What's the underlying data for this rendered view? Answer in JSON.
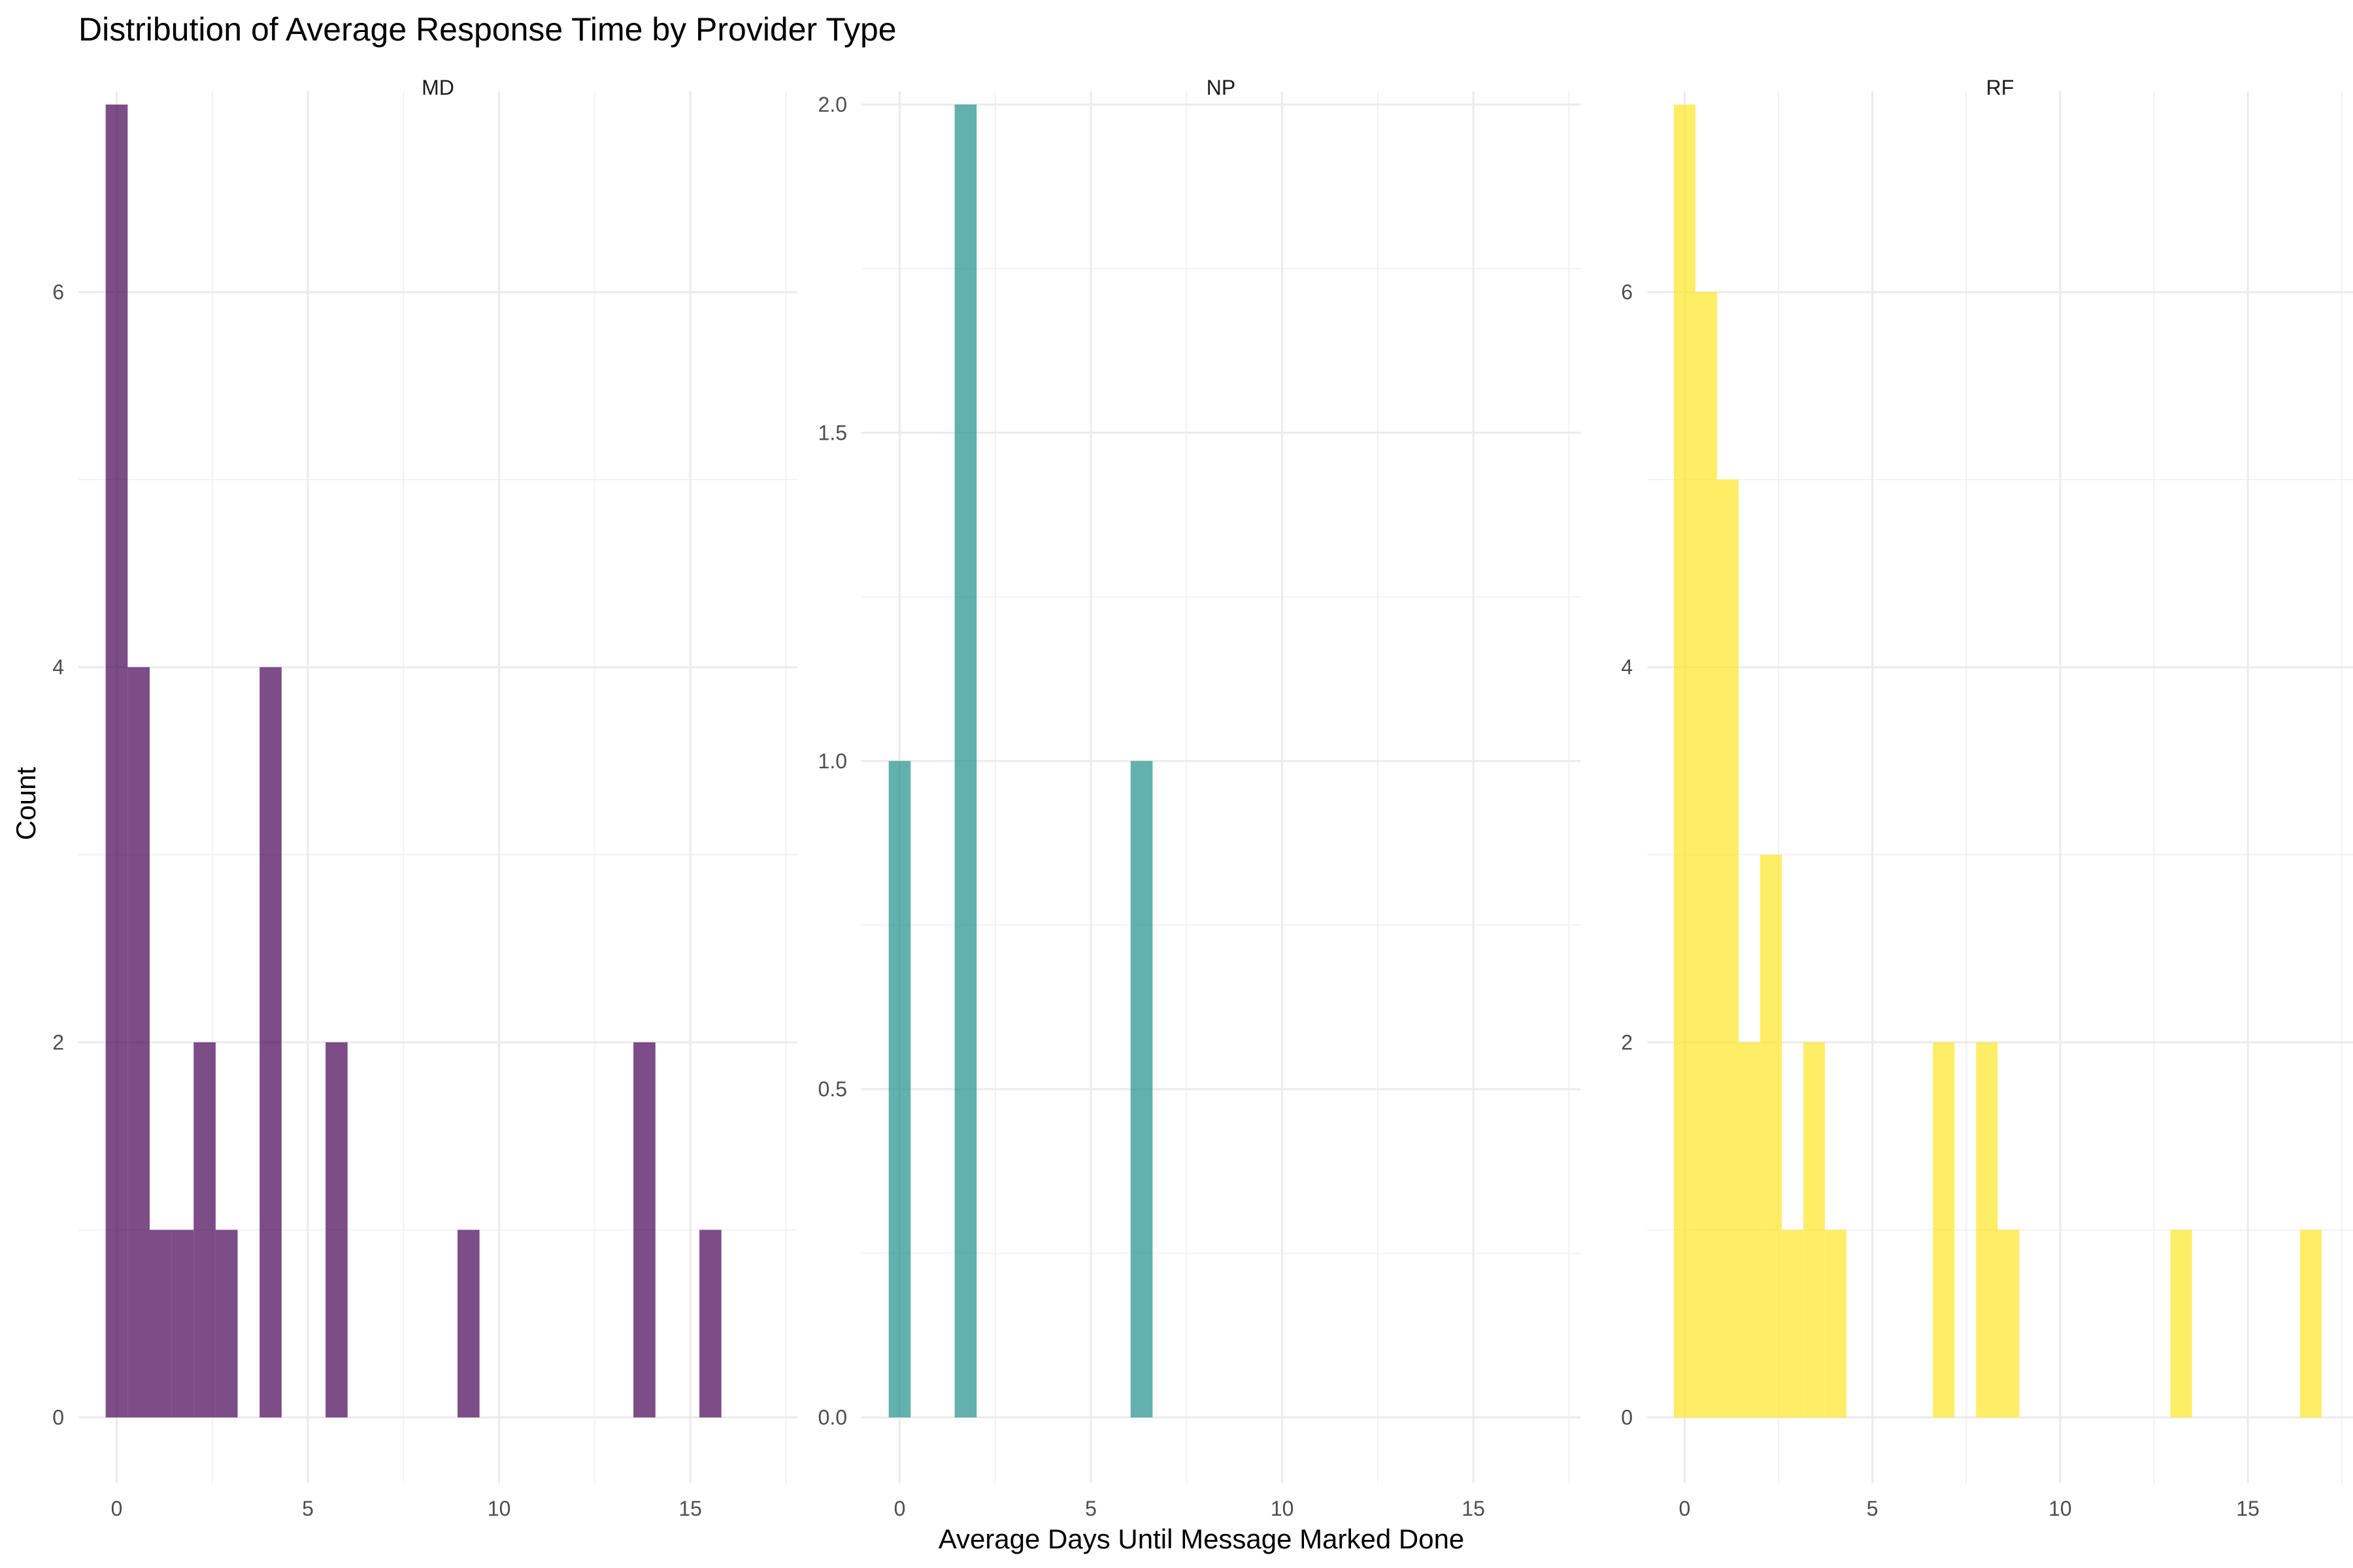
{
  "chart_data": {
    "type": "bar",
    "title": "Distribution of Average Response Time by Provider Type",
    "xlabel": "Average Days Until Message Marked Done",
    "ylabel": "Count",
    "bin_width": 0.575,
    "xlim": [
      -1.0,
      17.8
    ],
    "x_ticks": [
      0,
      5,
      10,
      15
    ],
    "grid": true,
    "legend": "none",
    "panels": [
      {
        "name": "MD",
        "color": "#440154",
        "ylim": [
          -0.35,
          7.0
        ],
        "y_ticks": [
          0,
          2,
          4,
          6
        ],
        "y_tick_labels": [
          "0",
          "2",
          "4",
          "6"
        ],
        "bins": [
          {
            "x": 0.0,
            "count": 7
          },
          {
            "x": 0.575,
            "count": 4
          },
          {
            "x": 1.15,
            "count": 1
          },
          {
            "x": 1.725,
            "count": 1
          },
          {
            "x": 2.3,
            "count": 2
          },
          {
            "x": 2.875,
            "count": 1
          },
          {
            "x": 4.025,
            "count": 4
          },
          {
            "x": 5.75,
            "count": 2
          },
          {
            "x": 9.2,
            "count": 1
          },
          {
            "x": 13.8,
            "count": 2
          },
          {
            "x": 15.525,
            "count": 1
          }
        ]
      },
      {
        "name": "NP",
        "color": "#21908C",
        "ylim": [
          -0.1,
          2.0
        ],
        "y_ticks": [
          0,
          0.5,
          1.0,
          1.5,
          2.0
        ],
        "y_tick_labels": [
          "0.0",
          "0.5",
          "1.0",
          "1.5",
          "2.0"
        ],
        "bins": [
          {
            "x": 0.0,
            "count": 1
          },
          {
            "x": 1.725,
            "count": 2
          },
          {
            "x": 6.325,
            "count": 1
          }
        ]
      },
      {
        "name": "RF",
        "color": "#FDE725",
        "ylim": [
          -0.35,
          7.0
        ],
        "y_ticks": [
          0,
          2,
          4,
          6
        ],
        "y_tick_labels": [
          "0",
          "2",
          "4",
          "6"
        ],
        "bins": [
          {
            "x": 0.0,
            "count": 7
          },
          {
            "x": 0.575,
            "count": 6
          },
          {
            "x": 1.15,
            "count": 5
          },
          {
            "x": 1.725,
            "count": 2
          },
          {
            "x": 2.3,
            "count": 3
          },
          {
            "x": 2.875,
            "count": 1
          },
          {
            "x": 3.45,
            "count": 2
          },
          {
            "x": 4.025,
            "count": 1
          },
          {
            "x": 6.9,
            "count": 2
          },
          {
            "x": 8.05,
            "count": 2
          },
          {
            "x": 8.625,
            "count": 1
          },
          {
            "x": 13.225,
            "count": 1
          },
          {
            "x": 16.675,
            "count": 1
          }
        ]
      }
    ]
  }
}
